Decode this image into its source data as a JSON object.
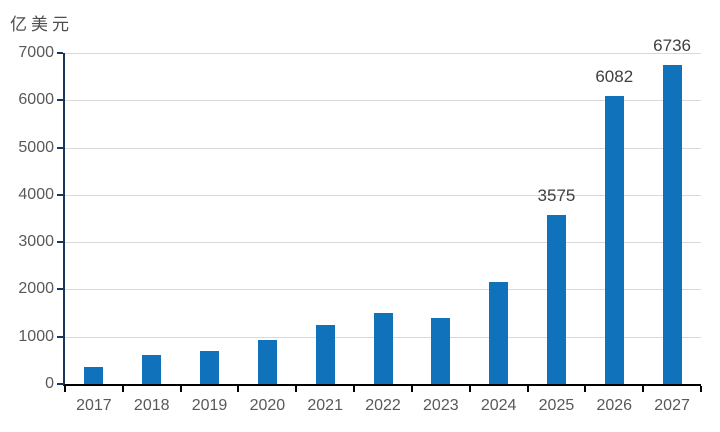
{
  "chart_data": {
    "type": "bar",
    "title": "",
    "xlabel": "",
    "ylabel": "亿美元",
    "unit_label": "亿美元",
    "categories": [
      "2017",
      "2018",
      "2019",
      "2020",
      "2021",
      "2022",
      "2023",
      "2024",
      "2025",
      "2026",
      "2027"
    ],
    "values": [
      350,
      620,
      690,
      930,
      1250,
      1500,
      1400,
      2150,
      3575,
      6082,
      6736
    ],
    "data_labels": [
      "",
      "",
      "",
      "",
      "",
      "",
      "",
      "",
      "3575",
      "6082",
      "6736"
    ],
    "ylim": [
      0,
      7000
    ],
    "y_ticks": [
      0,
      1000,
      2000,
      3000,
      4000,
      5000,
      6000,
      7000
    ],
    "grid": true,
    "legend": "none",
    "colors": {
      "bar": "#1072BA",
      "y_axis": "#17375E",
      "x_axis": "#000000",
      "gridline": "#D9D9D9",
      "tick_label": "#595959",
      "data_label": "#3F3F3F",
      "unit_label": "#4D4D4D",
      "background": "#FFFFFF"
    }
  }
}
